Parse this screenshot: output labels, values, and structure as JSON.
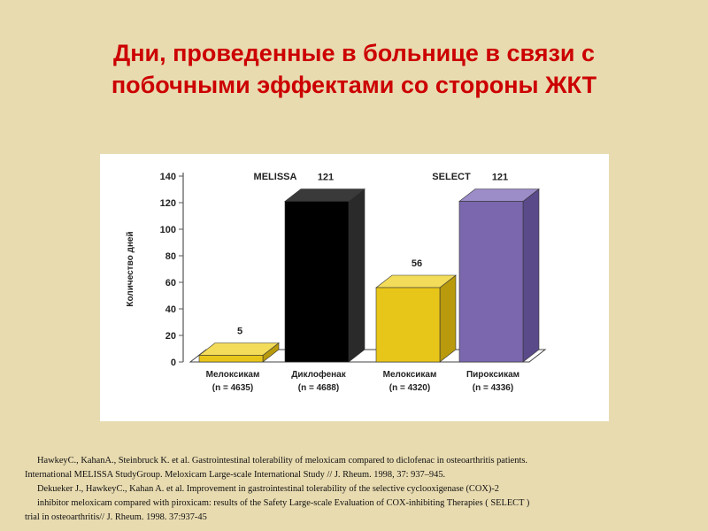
{
  "title": {
    "line1": "Дни, проведенные в больнице в связи с",
    "line2": "побочными эффектами со стороны ЖКТ"
  },
  "chart_data": {
    "type": "bar",
    "ylabel": "Количество дней",
    "ylim": [
      0,
      140
    ],
    "yticks": [
      0,
      20,
      40,
      60,
      80,
      100,
      120,
      140
    ],
    "groups": [
      "MELISSA",
      "SELECT"
    ],
    "categories": [
      {
        "drug": "Мелоксикам",
        "n": "(n = 4635)",
        "group": "MELISSA"
      },
      {
        "drug": "Диклофенак",
        "n": "(n = 4688)",
        "group": "MELISSA"
      },
      {
        "drug": "Мелоксикам",
        "n": "(n = 4320)",
        "group": "SELECT"
      },
      {
        "drug": "Пироксикам",
        "n": "(n = 4336)",
        "group": "SELECT"
      }
    ],
    "values": [
      5,
      121,
      56,
      121
    ],
    "value_labels": [
      "5",
      "121",
      "56",
      "121"
    ],
    "colors": [
      "#e8c619",
      "#000000",
      "#e8c619",
      "#7a67ad"
    ],
    "side_colors": [
      "#b89a0c",
      "#2a2a2a",
      "#b89a0c",
      "#5a4a8a"
    ],
    "top_colors": [
      "#f2dc5a",
      "#3a3a3a",
      "#f2dc5a",
      "#9c8cc8"
    ]
  },
  "references": [
    "HawkeyC., KahanA., Steinbruck K. et al. Gastrointestinal tolerability of meloxicam compared to diclofenac in osteoarthritis patients.",
    "International MELISSA StudyGroup. Meloxicam Large-scale International Study // J. Rheum. 1998, 37: 937–945.",
    "Dekueker J., HawkeyC., Kahan A. et al. Improvement in gastrointestinal tolerability of the selective cyclooxigenase (COX)-2",
    "inhibitor meloxicam compared with piroxicam: results of the Safety Large-scale Evaluation of COX-inhibiting Therapies ( SELECT )",
    "trial in osteoarthritis// J. Rheum. 1998. 37:937-45"
  ]
}
